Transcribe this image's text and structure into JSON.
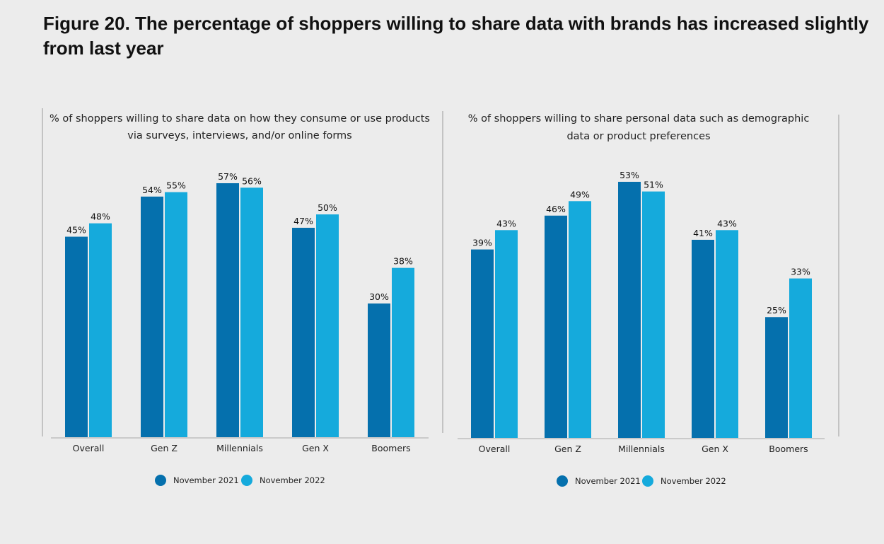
{
  "title": "Figure 20. The percentage of shoppers willing to share data with brands has increased slightly from last year",
  "colors": {
    "nov2021": "#0570ad",
    "nov2022": "#15aadc",
    "background": "#ececec"
  },
  "chart_data": [
    {
      "type": "bar",
      "title_lines": [
        "% of shoppers willing to share data on how they consume or use products",
        "via surveys, interviews, and/or online forms"
      ],
      "categories": [
        "Overall",
        "Gen Z",
        "Millennials",
        "Gen X",
        "Boomers"
      ],
      "series": [
        {
          "name": "November 2021",
          "values": [
            45,
            54,
            57,
            47,
            30
          ],
          "labels": [
            "45%",
            "54%",
            "57%",
            "47%",
            "30%"
          ]
        },
        {
          "name": "November 2022",
          "values": [
            48,
            55,
            56,
            50,
            38
          ],
          "labels": [
            "48%",
            "55%",
            "56%",
            "50%",
            "38%"
          ]
        }
      ],
      "ylim": [
        0,
        57
      ],
      "legend_position": "bottom-center",
      "grid": false
    },
    {
      "type": "bar",
      "title_lines": [
        "% of shoppers willing to share personal data such as demographic",
        "data or product preferences"
      ],
      "categories": [
        "Overall",
        "Gen Z",
        "Millennials",
        "Gen X",
        "Boomers"
      ],
      "series": [
        {
          "name": "November 2021",
          "values": [
            39,
            46,
            53,
            41,
            25
          ],
          "labels": [
            "39%",
            "46%",
            "53%",
            "41%",
            "25%"
          ]
        },
        {
          "name": "November 2022",
          "values": [
            43,
            49,
            51,
            43,
            33
          ],
          "labels": [
            "43%",
            "49%",
            "51%",
            "43%",
            "33%"
          ]
        }
      ],
      "ylim": [
        0,
        53
      ],
      "legend_position": "bottom-center",
      "grid": false
    }
  ]
}
